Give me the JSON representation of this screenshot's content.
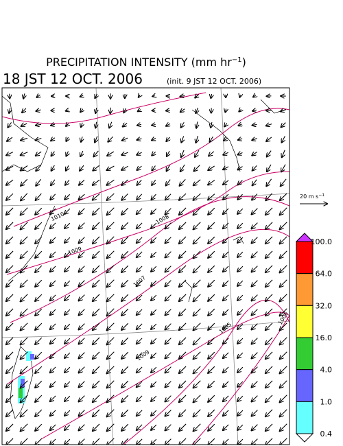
{
  "header": {
    "title_main": "PRECIPITATION INTENSITY (mm hr",
    "title_sup": "−1",
    "title_end": ")",
    "valid_time": "18 JST 12 OCT. 2006",
    "init_time": "(init. 9 JST 12 OCT. 2006)"
  },
  "vector_legend": {
    "label": "20 m s",
    "label_sup": "−1"
  },
  "isobars": [
    {
      "label": "1010"
    },
    {
      "label": "1009"
    },
    {
      "label": "1008"
    },
    {
      "label": "1007"
    },
    {
      "label": "1009"
    },
    {
      "label": "1005"
    },
    {
      "label": "1006"
    }
  ],
  "colorbar": {
    "top_color": "#cc33ff",
    "bottom_color": "#ffffff",
    "levels": [
      {
        "label": "100.0",
        "color": "#ff0000"
      },
      {
        "label": "64.0",
        "color": "#ff9933"
      },
      {
        "label": "32.0",
        "color": "#ffff33"
      },
      {
        "label": "16.0",
        "color": "#33cc33"
      },
      {
        "label": "4.0",
        "color": "#6666ff"
      },
      {
        "label": "1.0",
        "color": "#66ffff"
      },
      {
        "label": "0.4"
      }
    ]
  }
}
